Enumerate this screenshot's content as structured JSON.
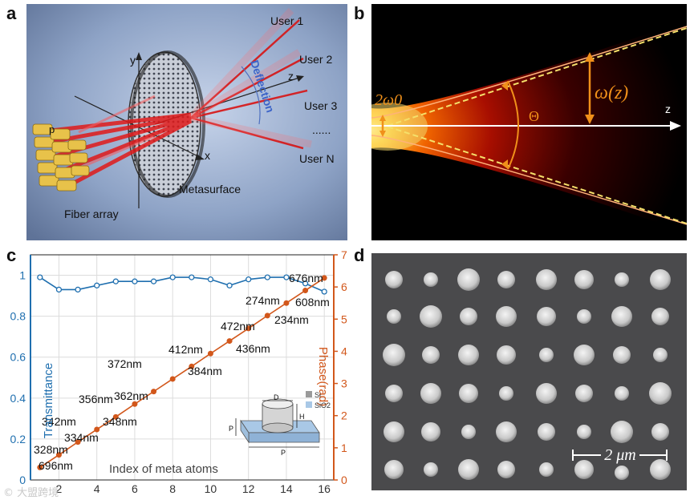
{
  "panel_labels": {
    "a": "a",
    "b": "b",
    "c": "c",
    "d": "d"
  },
  "panel_a": {
    "users": [
      "User 1",
      "User 2",
      "User 3",
      "......",
      "User N"
    ],
    "deflection_label": "Deflection",
    "axis_x": "x",
    "axis_y": "y",
    "axis_z": "z",
    "pitch_label": "p",
    "metasurface_label": "Metasurface",
    "fiber_array_label": "Fiber array"
  },
  "panel_b": {
    "waist_label": "2ω0",
    "beam_width_label": "ω(z)",
    "angle_label": "Θ",
    "axis_label": "z"
  },
  "panel_d": {
    "scale_bar_label": "2 μm"
  },
  "chart_data": {
    "type": "line",
    "x": [
      1,
      2,
      3,
      4,
      5,
      6,
      7,
      8,
      9,
      10,
      11,
      12,
      13,
      14,
      15,
      16
    ],
    "xlabel": "Index of meta atoms",
    "xticks": [
      2,
      4,
      6,
      8,
      10,
      12,
      14,
      16
    ],
    "xlim": [
      0.5,
      16.5
    ],
    "series": [
      {
        "name": "Transmittance",
        "axis": "left",
        "color": "#1f6faf",
        "values": [
          0.99,
          0.93,
          0.93,
          0.95,
          0.97,
          0.97,
          0.97,
          0.99,
          0.99,
          0.98,
          0.95,
          0.98,
          0.99,
          0.99,
          0.96,
          0.92
        ]
      },
      {
        "name": "Phase(rad)",
        "axis": "right",
        "color": "#d2571b",
        "values": [
          0.39,
          0.78,
          1.18,
          1.57,
          1.96,
          2.36,
          2.75,
          3.14,
          3.53,
          3.93,
          4.32,
          4.71,
          5.11,
          5.5,
          5.89,
          6.28
        ]
      }
    ],
    "ylabel_left": "Transmittance",
    "ylim_left": [
      0,
      1.1
    ],
    "yticks_left": [
      "0",
      "0.2",
      "0.4",
      "0.6",
      "0.8",
      "1"
    ],
    "yticks_left_values": [
      0,
      0.2,
      0.4,
      0.6,
      0.8,
      1.0
    ],
    "ylabel_right": "Phase(rad)",
    "ylim_right": [
      0,
      7
    ],
    "yticks_right": [
      "0",
      "1",
      "2",
      "3",
      "4",
      "5",
      "6",
      "7"
    ],
    "annotations": [
      "328nm",
      "696nm",
      "342nm",
      "334nm",
      "356nm",
      "348nm",
      "372nm",
      "362nm",
      "412nm",
      "384nm",
      "472nm",
      "436nm",
      "274nm",
      "234nm",
      "676nm",
      "608nm"
    ],
    "inset": {
      "legend": [
        "Si",
        "SiO2"
      ],
      "labels": {
        "D": "D",
        "H": "H",
        "P_side": "P",
        "P_bottom": "P"
      }
    }
  },
  "watermark": "© 大盟跨境"
}
